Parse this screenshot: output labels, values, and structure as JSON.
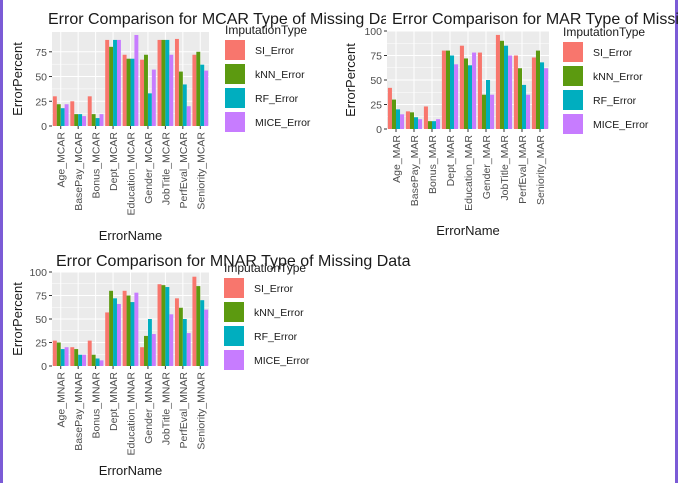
{
  "colors": {
    "SI_Error": "#f8766d",
    "kNN_Error": "#5c9a10",
    "RF_Error": "#00aebf",
    "MICE_Error": "#c77cff",
    "panel": "#ebebeb",
    "frame": "#7b5bd6"
  },
  "chart_data": [
    {
      "type": "bar",
      "title": "Error Comparison for MCAR Type of Missing Data",
      "xlabel": "ErrorName",
      "ylabel": "ErrorPercent",
      "ylim": [
        0,
        95
      ],
      "yticks": [
        0,
        25,
        50,
        75
      ],
      "legend_title": "ImputationType",
      "categories": [
        "Age_MCAR",
        "BasePay_MCAR",
        "Bonus_MCAR",
        "Dept_MCAR",
        "Education_MCAR",
        "Gender_MCAR",
        "JobTitle_MCAR",
        "PerfEval_MCAR",
        "Seniority_MCAR"
      ],
      "series": [
        {
          "name": "SI_Error",
          "values": [
            30,
            25,
            30,
            87,
            72,
            67,
            87,
            88,
            72
          ]
        },
        {
          "name": "kNN_Error",
          "values": [
            22,
            12,
            12,
            80,
            68,
            72,
            87,
            55,
            75
          ]
        },
        {
          "name": "RF_Error",
          "values": [
            18,
            12,
            8,
            87,
            68,
            33,
            87,
            42,
            62
          ]
        },
        {
          "name": "MICE_Error",
          "values": [
            22,
            10,
            12,
            87,
            92,
            57,
            72,
            20,
            56
          ]
        }
      ]
    },
    {
      "type": "bar",
      "title": "Error Comparison for MAR Type of Missing Data",
      "xlabel": "ErrorName",
      "ylabel": "ErrorPercent",
      "ylim": [
        0,
        100
      ],
      "yticks": [
        0,
        25,
        50,
        75,
        100
      ],
      "legend_title": "ImputationType",
      "categories": [
        "Age_MAR",
        "BasePay_MAR",
        "Bonus_MAR",
        "Dept_MAR",
        "Education_MAR",
        "Gender_MAR",
        "JobTitle_MAR",
        "PerfEval_MAR",
        "Seniority_MAR"
      ],
      "series": [
        {
          "name": "SI_Error",
          "values": [
            42,
            18,
            23,
            80,
            85,
            78,
            96,
            75,
            73
          ]
        },
        {
          "name": "kNN_Error",
          "values": [
            30,
            17,
            8,
            80,
            72,
            35,
            90,
            62,
            80
          ]
        },
        {
          "name": "RF_Error",
          "values": [
            20,
            12,
            8,
            75,
            65,
            50,
            85,
            45,
            68
          ]
        },
        {
          "name": "MICE_Error",
          "values": [
            15,
            10,
            10,
            66,
            78,
            35,
            75,
            35,
            62
          ]
        }
      ]
    },
    {
      "type": "bar",
      "title": "Error Comparison for MNAR Type of Missing Data",
      "xlabel": "ErrorName",
      "ylabel": "ErrorPercent",
      "ylim": [
        0,
        100
      ],
      "yticks": [
        0,
        25,
        50,
        75,
        100
      ],
      "legend_title": "ImputationType",
      "categories": [
        "Age_MNAR",
        "BasePay_MNAR",
        "Bonus_MNAR",
        "Dept_MNAR",
        "Education_MNAR",
        "Gender_MNAR",
        "JobTitle_MNAR",
        "PerfEval_MNAR",
        "Seniority_MNAR"
      ],
      "series": [
        {
          "name": "SI_Error",
          "values": [
            27,
            20,
            27,
            57,
            80,
            20,
            87,
            72,
            95
          ]
        },
        {
          "name": "kNN_Error",
          "values": [
            25,
            18,
            12,
            80,
            75,
            32,
            86,
            62,
            85
          ]
        },
        {
          "name": "RF_Error",
          "values": [
            18,
            12,
            8,
            72,
            68,
            50,
            84,
            50,
            70
          ]
        },
        {
          "name": "MICE_Error",
          "values": [
            20,
            12,
            6,
            66,
            78,
            34,
            55,
            35,
            60
          ]
        }
      ]
    }
  ]
}
